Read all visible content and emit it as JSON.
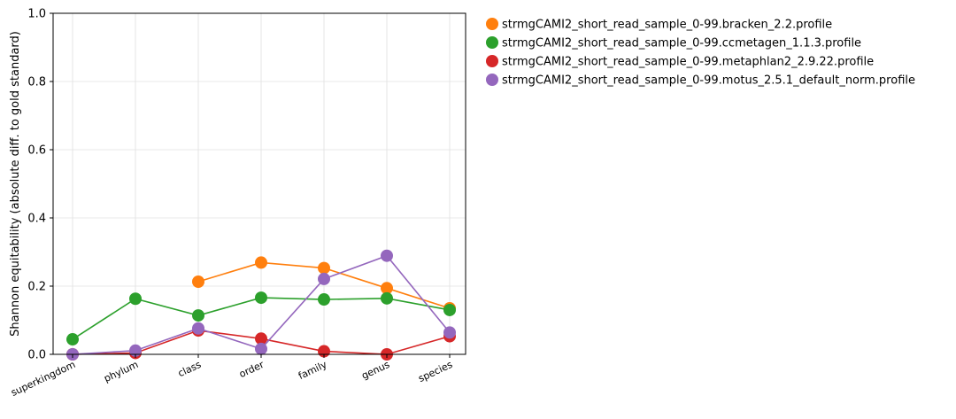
{
  "chart_data": {
    "type": "line",
    "title": "",
    "xlabel": "",
    "ylabel": "Shannon equitability (absolute diff. to gold standard)",
    "ylim": [
      0,
      1.0
    ],
    "yticks": [
      "0.0",
      "0.2",
      "0.4",
      "0.6",
      "0.8",
      "1.0"
    ],
    "grid": true,
    "legend_position": "outside-right",
    "categories": [
      "superkingdom",
      "phylum",
      "class",
      "order",
      "family",
      "genus",
      "species"
    ],
    "series": [
      {
        "name": "strmgCAMI2_short_read_sample_0-99.bracken_2.2.profile",
        "color": "#ff7f0e",
        "values": [
          null,
          null,
          0.213,
          0.269,
          0.253,
          0.194,
          0.135
        ]
      },
      {
        "name": "strmgCAMI2_short_read_sample_0-99.ccmetagen_1.1.3.profile",
        "color": "#2ca02c",
        "values": [
          0.044,
          0.163,
          0.114,
          0.166,
          0.161,
          0.164,
          0.13
        ]
      },
      {
        "name": "strmgCAMI2_short_read_sample_0-99.metaphlan2_2.9.22.profile",
        "color": "#d62728",
        "values": [
          0.0,
          0.004,
          0.07,
          0.046,
          0.009,
          0.0,
          0.053
        ]
      },
      {
        "name": "strmgCAMI2_short_read_sample_0-99.motus_2.5.1_default_norm.profile",
        "color": "#9467bd",
        "values": [
          0.0,
          0.011,
          0.076,
          0.016,
          0.221,
          0.289,
          0.064
        ]
      }
    ]
  }
}
